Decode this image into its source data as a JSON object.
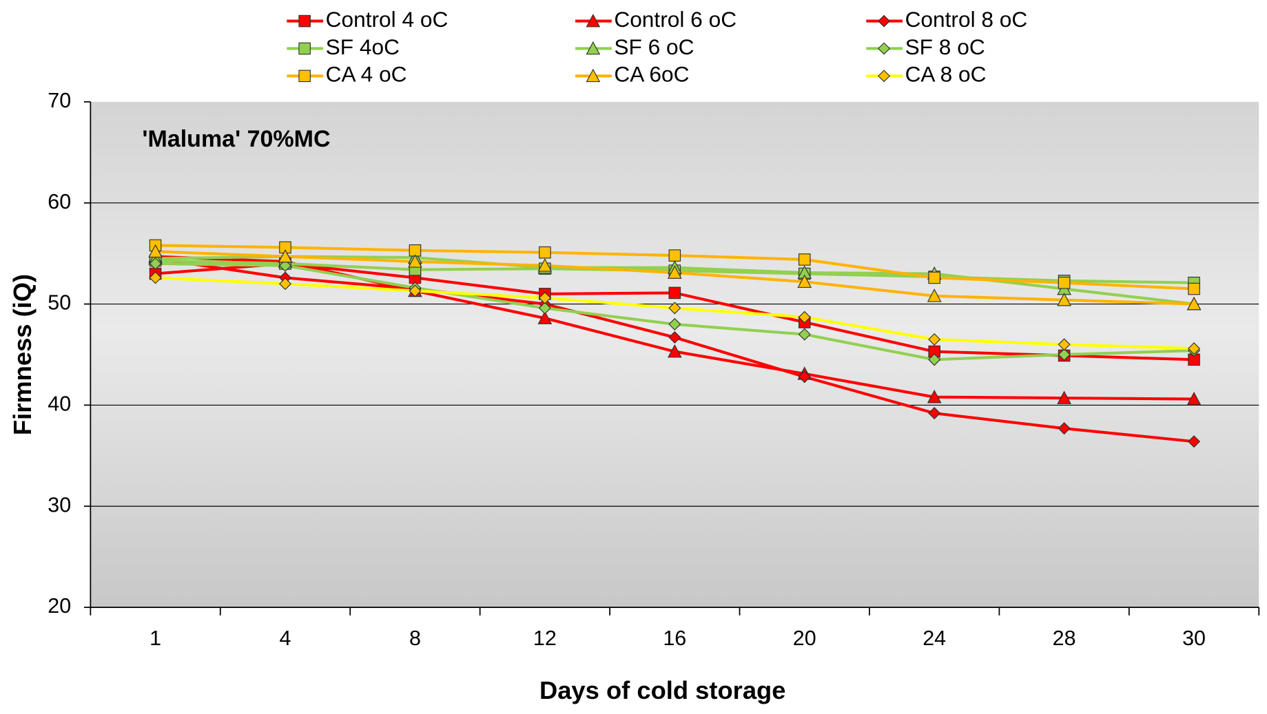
{
  "chart_data": {
    "type": "line",
    "annotation": "'Maluma' 70%MC",
    "x_label": "Days of cold storage",
    "y_label": "Firmness (iQ)",
    "categories": [
      "1",
      "4",
      "8",
      "12",
      "16",
      "20",
      "24",
      "28",
      "30"
    ],
    "ylim": [
      20,
      70
    ],
    "yticks": [
      20,
      30,
      40,
      50,
      60,
      70
    ],
    "grid": true,
    "series": [
      {
        "name": "Control 4 oC",
        "color": "#ff0000",
        "marker": "square",
        "marker_color": "#ff0000",
        "values": [
          53.0,
          54.0,
          52.6,
          51.0,
          51.1,
          48.2,
          45.3,
          44.9,
          44.5
        ]
      },
      {
        "name": "Control 6 oC",
        "color": "#ff0000",
        "marker": "triangle",
        "marker_color": "#ff0000",
        "values": [
          54.7,
          54.2,
          51.3,
          48.6,
          45.3,
          43.1,
          40.8,
          40.7,
          40.6
        ]
      },
      {
        "name": "Control 8 oC",
        "color": "#ff0000",
        "marker": "diamond",
        "marker_color": "#ff0000",
        "values": [
          54.5,
          52.6,
          51.5,
          50.0,
          46.7,
          42.8,
          39.2,
          37.7,
          36.4
        ]
      },
      {
        "name": "SF 4oC",
        "color": "#92d050",
        "marker": "square",
        "marker_color": "#92d050",
        "values": [
          54.3,
          54.0,
          53.4,
          53.5,
          53.3,
          53.0,
          52.7,
          52.3,
          52.1
        ]
      },
      {
        "name": "SF 6 oC",
        "color": "#92d050",
        "marker": "triangle",
        "marker_color": "#92d050",
        "values": [
          54.5,
          54.7,
          54.6,
          53.6,
          53.6,
          53.1,
          53.0,
          51.5,
          50.0
        ]
      },
      {
        "name": "SF 8 oC",
        "color": "#92d050",
        "marker": "diamond",
        "marker_color": "#92d050",
        "values": [
          54.0,
          53.8,
          51.6,
          49.6,
          48.0,
          47.0,
          44.5,
          45.0,
          45.4
        ]
      },
      {
        "name": "CA 4 oC",
        "color": "#ffb300",
        "marker": "square",
        "marker_color": "#ffc000",
        "values": [
          55.8,
          55.6,
          55.3,
          55.1,
          54.8,
          54.4,
          52.6,
          52.1,
          51.5
        ]
      },
      {
        "name": "CA 6oC",
        "color": "#ffb300",
        "marker": "triangle",
        "marker_color": "#ffc000",
        "values": [
          55.2,
          54.7,
          54.2,
          53.8,
          53.1,
          52.2,
          50.8,
          50.4,
          50.0
        ]
      },
      {
        "name": "CA 8 oC",
        "color": "#ffff00",
        "marker": "diamond",
        "marker_color": "#ffc000",
        "values": [
          52.6,
          52.0,
          51.3,
          50.6,
          49.6,
          48.7,
          46.5,
          46.0,
          45.6
        ]
      }
    ]
  }
}
